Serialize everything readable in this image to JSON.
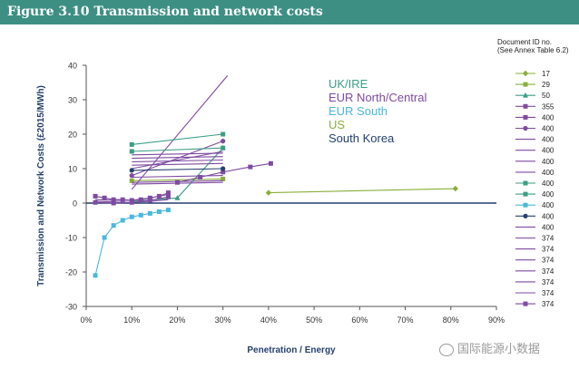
{
  "header": {
    "title": "Figure 3.10 Transmission and network costs"
  },
  "doc_legend": {
    "title_line1": "Document ID no.",
    "title_line2": "(See Annex Table 6.2)"
  },
  "watermark": {
    "text": "国际能源小数据"
  },
  "colors": {
    "UK/IRE": "#3a9e86",
    "EUR North/Central": "#7e4ba0",
    "EUR South": "#49b8dd",
    "US": "#8aae3a",
    "South Korea": "#253f6f",
    "header_bg": "#3d8f84",
    "zero_line": "#253f6f"
  },
  "chart_data": {
    "type": "line",
    "xlabel": "Penetration / Energy",
    "ylabel": "Transmission and Network Costs (£2015/MWh)",
    "xlim": [
      0,
      90
    ],
    "ylim": [
      -30,
      40
    ],
    "x_ticks": [
      "0%",
      "10%",
      "20%",
      "30%",
      "40%",
      "50%",
      "60%",
      "70%",
      "80%",
      "90%"
    ],
    "y_ticks": [
      "-30",
      "-20",
      "-10",
      "0",
      "10",
      "20",
      "30",
      "40"
    ],
    "grid": false,
    "region_labels": [
      "UK/IRE",
      "EUR North/Central",
      "EUR South",
      "US",
      "South Korea"
    ],
    "series": [
      {
        "name": "17",
        "region": "US",
        "marker": "diamond",
        "x": [
          40,
          81
        ],
        "y": [
          3,
          4.2
        ]
      },
      {
        "name": "29",
        "region": "US",
        "marker": "square",
        "x": [
          10,
          30
        ],
        "y": [
          6.5,
          7
        ]
      },
      {
        "name": "50",
        "region": "UK/IRE",
        "marker": "triangle",
        "x": [
          10,
          20,
          30
        ],
        "y": [
          0.5,
          1.5,
          16
        ]
      },
      {
        "name": "355",
        "region": "EUR North/Central",
        "marker": "square",
        "x": [
          2,
          4,
          6,
          8,
          10,
          12,
          14,
          16,
          18
        ],
        "y": [
          2,
          1.5,
          1,
          1,
          0.8,
          1,
          1.5,
          2,
          3
        ]
      },
      {
        "name": "400",
        "region": "EUR North/Central",
        "marker": "square",
        "x": [
          20,
          25,
          30,
          36,
          40.5
        ],
        "y": [
          6,
          7.5,
          9,
          10.5,
          11.5
        ]
      },
      {
        "name": "400",
        "region": "EUR North/Central",
        "marker": "circle",
        "x": [
          10,
          30
        ],
        "y": [
          8,
          18
        ]
      },
      {
        "name": "400",
        "region": "EUR North/Central",
        "marker": "none",
        "x": [
          10,
          31
        ],
        "y": [
          4,
          37
        ]
      },
      {
        "name": "400",
        "region": "EUR North/Central",
        "marker": "none",
        "x": [
          10,
          30
        ],
        "y": [
          10,
          15
        ]
      },
      {
        "name": "400",
        "region": "EUR North/Central",
        "marker": "none",
        "x": [
          10,
          30
        ],
        "y": [
          12,
          12.5
        ]
      },
      {
        "name": "400",
        "region": "EUR North/Central",
        "marker": "none",
        "x": [
          10,
          30
        ],
        "y": [
          13,
          13.5
        ]
      },
      {
        "name": "400",
        "region": "UK/IRE",
        "marker": "square",
        "x": [
          10,
          30
        ],
        "y": [
          17,
          20
        ]
      },
      {
        "name": "400",
        "region": "UK/IRE",
        "marker": "square",
        "x": [
          10,
          30
        ],
        "y": [
          15,
          16
        ]
      },
      {
        "name": "400",
        "region": "EUR South",
        "marker": "square",
        "x": [
          2,
          4,
          6,
          8,
          10,
          12,
          14,
          16,
          18
        ],
        "y": [
          -21,
          -10,
          -6.5,
          -5,
          -4,
          -3.5,
          -3,
          -2.5,
          -2
        ]
      },
      {
        "name": "400",
        "region": "South Korea",
        "marker": "circle",
        "x": [
          10,
          30
        ],
        "y": [
          9.5,
          10
        ]
      },
      {
        "name": "400",
        "region": "EUR North/Central",
        "marker": "none",
        "x": [
          10,
          30
        ],
        "y": [
          5.5,
          6
        ]
      },
      {
        "name": "374",
        "region": "EUR North/Central",
        "marker": "none",
        "x": [
          2,
          6,
          10,
          14,
          18
        ],
        "y": [
          0.5,
          0.3,
          0.2,
          0.5,
          1
        ]
      },
      {
        "name": "374",
        "region": "EUR North/Central",
        "marker": "none",
        "x": [
          10,
          30
        ],
        "y": [
          14,
          14.5
        ]
      },
      {
        "name": "374",
        "region": "EUR North/Central",
        "marker": "none",
        "x": [
          10,
          30
        ],
        "y": [
          11,
          11.5
        ]
      },
      {
        "name": "374",
        "region": "EUR North/Central",
        "marker": "none",
        "x": [
          10,
          30
        ],
        "y": [
          7.5,
          8
        ]
      },
      {
        "name": "374",
        "region": "EUR North/Central",
        "marker": "none",
        "x": [
          10,
          30
        ],
        "y": [
          6,
          6.5
        ]
      },
      {
        "name": "374",
        "region": "EUR North/Central",
        "marker": "none",
        "x": [
          2,
          6,
          10,
          14,
          18
        ],
        "y": [
          1,
          0.8,
          0.8,
          1.5,
          2.5
        ]
      },
      {
        "name": "374",
        "region": "EUR North/Central",
        "marker": "square",
        "x": [
          2,
          6,
          10,
          14,
          18
        ],
        "y": [
          0.2,
          0,
          0.2,
          0.8,
          1.8
        ]
      }
    ]
  }
}
